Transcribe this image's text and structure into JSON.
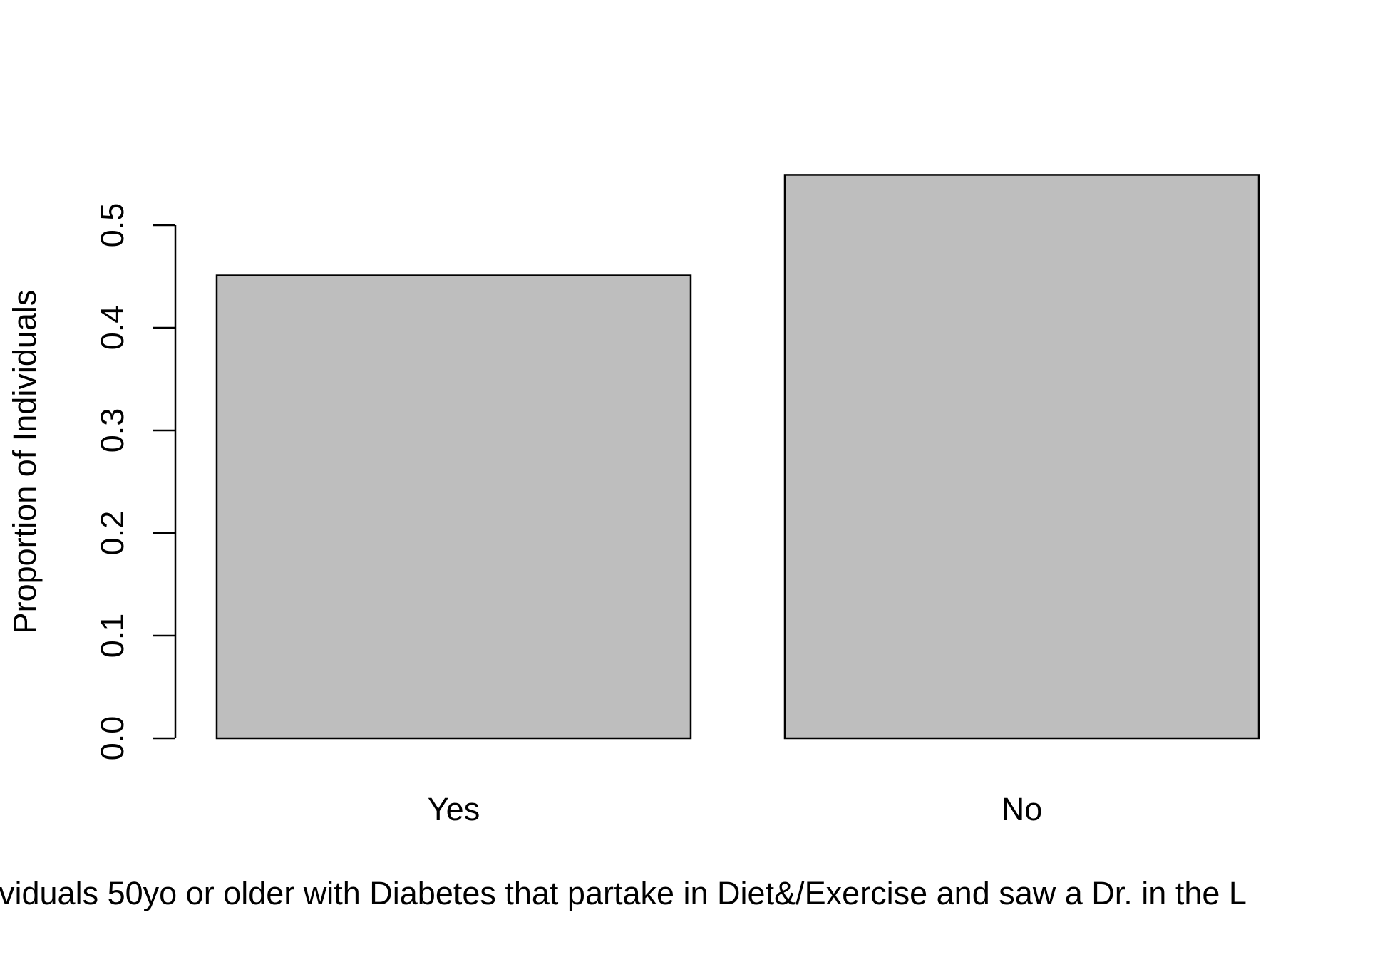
{
  "chart_data": {
    "type": "bar",
    "categories": [
      "Yes",
      "No"
    ],
    "values": [
      0.451,
      0.549
    ],
    "title": "",
    "xlabel": "viduals 50yo or older with Diabetes that partake in Diet&/Exercise and saw a Dr. in the L",
    "ylabel": "Proportion of Individuals",
    "ylim": [
      0,
      0.5
    ],
    "yticks": [
      "0.0",
      "0.1",
      "0.2",
      "0.3",
      "0.4",
      "0.5"
    ],
    "grid": false,
    "legend": "none",
    "colors": {
      "bar_fill": "#bebebe",
      "bar_stroke": "#000000",
      "axis": "#000000"
    }
  }
}
